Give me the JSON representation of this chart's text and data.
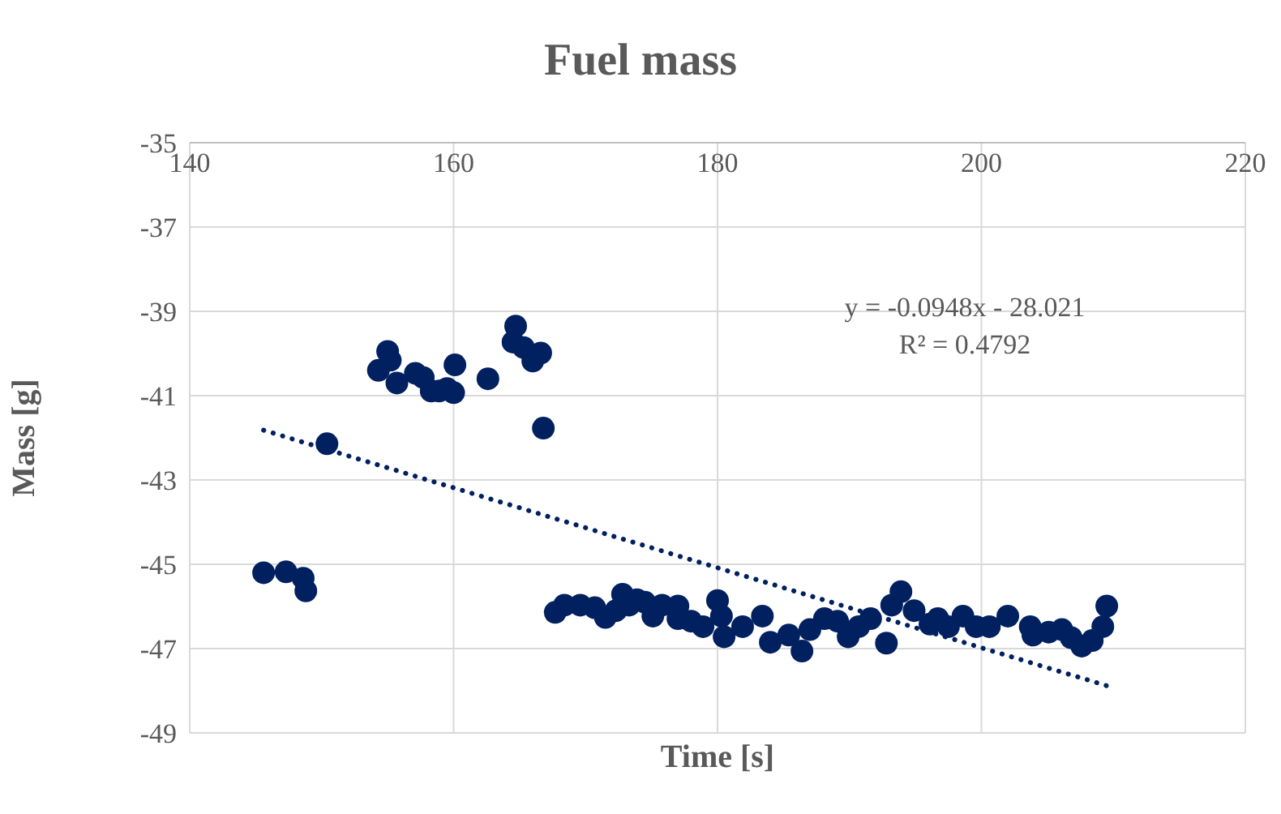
{
  "chart_data": {
    "type": "scatter",
    "title": "Fuel mass",
    "xlabel": "Time [s]",
    "ylabel": "Mass [g]",
    "xlim": [
      140,
      220
    ],
    "xticks": [
      140,
      160,
      180,
      200,
      220
    ],
    "ylim": [
      -49,
      -35
    ],
    "yticks": [
      -35,
      -37,
      -39,
      -41,
      -43,
      -45,
      -47,
      -49
    ],
    "grid": true,
    "annotations": [
      "y = -0.0948x - 28.021",
      "R² = 0.4792"
    ],
    "series": [
      {
        "color": "#002060",
        "marker": "circle",
        "x": [
          145.6,
          147.3,
          148.6,
          148.8,
          150.4,
          154.3,
          155.0,
          155.2,
          155.7,
          157.1,
          157.7,
          158.3,
          158.9,
          159.5,
          160.0,
          160.1,
          162.6,
          164.7,
          164.5,
          165.3,
          166.0,
          166.6,
          166.8,
          167.7,
          168.4,
          169.6,
          170.7,
          171.5,
          172.3,
          172.8,
          173.3,
          173.9,
          174.5,
          175.1,
          175.8,
          177.0,
          177.0,
          178.0,
          178.9,
          180.0,
          180.3,
          180.5,
          181.9,
          183.4,
          184.0,
          185.4,
          186.4,
          187.0,
          188.1,
          189.1,
          189.9,
          190.7,
          191.6,
          192.8,
          193.2,
          193.9,
          194.9,
          196.1,
          196.7,
          197.5,
          198.6,
          199.6,
          200.6,
          202.0,
          203.7,
          203.9,
          205.1,
          206.1,
          206.8,
          207.6,
          208.4,
          209.2,
          209.5
        ],
        "values": [
          -45.2,
          -45.18,
          -45.33,
          -45.63,
          -42.14,
          -40.4,
          -39.95,
          -40.16,
          -40.7,
          -40.47,
          -40.57,
          -40.89,
          -40.89,
          -40.83,
          -40.93,
          -40.27,
          -40.6,
          -39.35,
          -39.73,
          -39.86,
          -40.18,
          -39.99,
          -41.77,
          -46.14,
          -45.97,
          -45.97,
          -46.03,
          -46.26,
          -46.1,
          -45.71,
          -45.97,
          -45.84,
          -45.9,
          -46.23,
          -45.97,
          -45.99,
          -46.29,
          -46.35,
          -46.48,
          -45.86,
          -46.23,
          -46.72,
          -46.48,
          -46.23,
          -46.85,
          -46.68,
          -47.06,
          -46.55,
          -46.29,
          -46.35,
          -46.72,
          -46.48,
          -46.29,
          -46.87,
          -45.97,
          -45.65,
          -46.1,
          -46.42,
          -46.29,
          -46.48,
          -46.23,
          -46.48,
          -46.48,
          -46.23,
          -46.48,
          -46.68,
          -46.61,
          -46.55,
          -46.74,
          -46.94,
          -46.81,
          -46.48,
          -45.99
        ]
      },
      {
        "type": "line",
        "color": "#002060",
        "marker": "none",
        "line_style": "dotted",
        "x": [
          145.6,
          209.5
        ],
        "values": [
          -41.82,
          -47.88
        ]
      }
    ]
  }
}
